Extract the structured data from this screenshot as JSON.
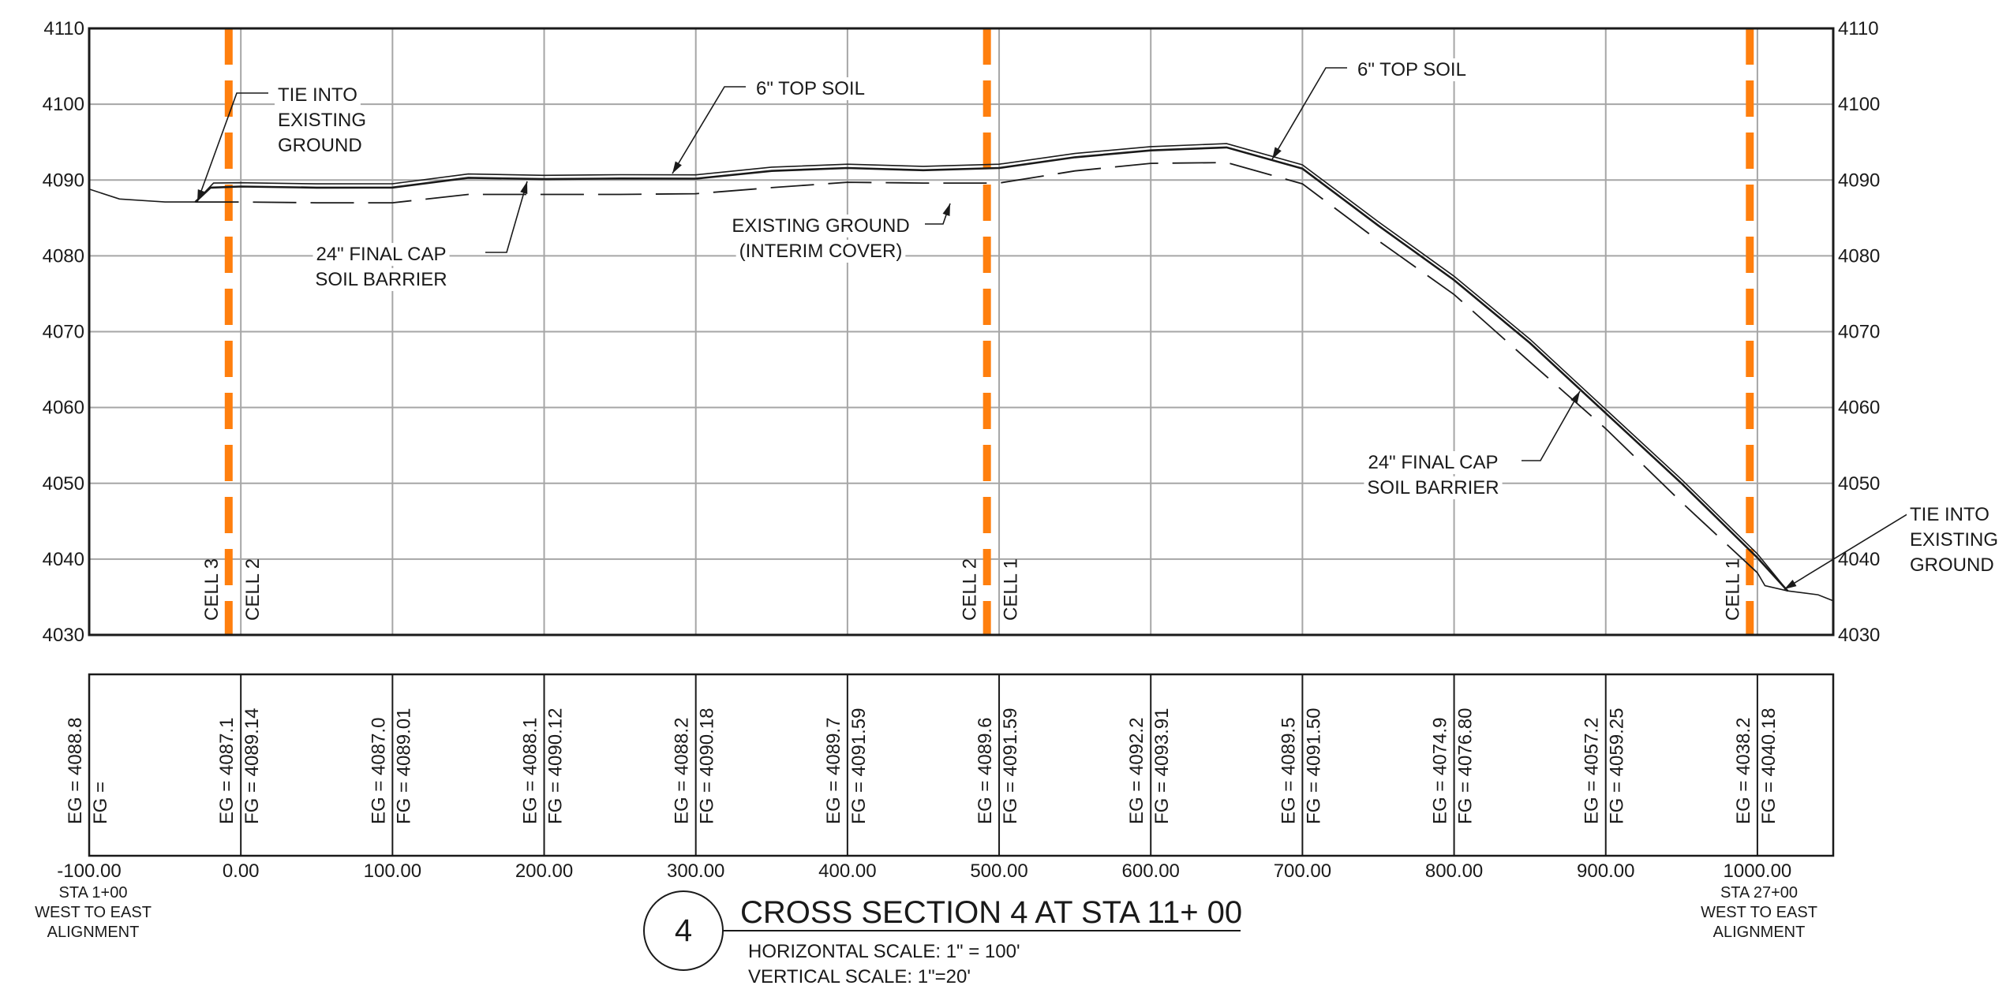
{
  "chart_data": {
    "type": "line",
    "xlim": [
      -100,
      1050
    ],
    "ylim": [
      4030,
      4110
    ],
    "y_ticks": [
      4030,
      4040,
      4050,
      4060,
      4070,
      4080,
      4090,
      4100,
      4110
    ],
    "x_ticks": [
      -100,
      0,
      100,
      200,
      300,
      400,
      500,
      600,
      700,
      800,
      900,
      1000
    ],
    "x_tick_labels": [
      "-100.00",
      "0.00",
      "100.00",
      "200.00",
      "300.00",
      "400.00",
      "500.00",
      "600.00",
      "700.00",
      "800.00",
      "900.00",
      "1000.00"
    ],
    "grid": true,
    "series": [
      {
        "key": "existing_ground_outside",
        "style": "solid-thin",
        "segments": [
          [
            [
              -100,
              4088.8
            ],
            [
              -80,
              4087.5
            ],
            [
              -50,
              4087.1
            ],
            [
              -30,
              4087.1
            ]
          ],
          [
            [
              1000,
              4038.2
            ],
            [
              1005,
              4036.5
            ],
            [
              1020,
              4035.8
            ],
            [
              1040,
              4035.3
            ],
            [
              1050,
              4034.5
            ]
          ]
        ]
      },
      {
        "key": "existing_ground_interim",
        "style": "dashed",
        "points": [
          [
            -30,
            4087.1
          ],
          [
            0,
            4087.1
          ],
          [
            50,
            4087.0
          ],
          [
            100,
            4087.0
          ],
          [
            150,
            4088.1
          ],
          [
            200,
            4088.1
          ],
          [
            250,
            4088.1
          ],
          [
            300,
            4088.2
          ],
          [
            350,
            4089.0
          ],
          [
            400,
            4089.7
          ],
          [
            450,
            4089.6
          ],
          [
            500,
            4089.6
          ],
          [
            550,
            4091.2
          ],
          [
            600,
            4092.2
          ],
          [
            650,
            4092.3
          ],
          [
            700,
            4089.5
          ],
          [
            750,
            4082.0
          ],
          [
            800,
            4074.9
          ],
          [
            850,
            4066.0
          ],
          [
            900,
            4057.2
          ],
          [
            950,
            4047.5
          ],
          [
            1000,
            4038.2
          ]
        ]
      },
      {
        "key": "final_cap",
        "style": "solid",
        "points": [
          [
            -30,
            4087.1
          ],
          [
            -20,
            4089.0
          ],
          [
            0,
            4089.14
          ],
          [
            50,
            4089.0
          ],
          [
            100,
            4089.01
          ],
          [
            150,
            4090.3
          ],
          [
            200,
            4090.12
          ],
          [
            250,
            4090.2
          ],
          [
            300,
            4090.18
          ],
          [
            350,
            4091.2
          ],
          [
            400,
            4091.59
          ],
          [
            450,
            4091.3
          ],
          [
            500,
            4091.59
          ],
          [
            550,
            4093.0
          ],
          [
            600,
            4093.91
          ],
          [
            650,
            4094.3
          ],
          [
            700,
            4091.5
          ],
          [
            750,
            4084.0
          ],
          [
            800,
            4076.8
          ],
          [
            850,
            4068.5
          ],
          [
            900,
            4059.25
          ],
          [
            950,
            4050.0
          ],
          [
            1000,
            4040.18
          ],
          [
            1020,
            4035.8
          ]
        ]
      },
      {
        "key": "top_soil",
        "style": "solid",
        "points": [
          [
            -30,
            4087.1
          ],
          [
            -18,
            4089.6
          ],
          [
            0,
            4089.64
          ],
          [
            50,
            4089.5
          ],
          [
            100,
            4089.51
          ],
          [
            150,
            4090.8
          ],
          [
            200,
            4090.62
          ],
          [
            250,
            4090.7
          ],
          [
            300,
            4090.68
          ],
          [
            350,
            4091.7
          ],
          [
            400,
            4092.09
          ],
          [
            450,
            4091.8
          ],
          [
            500,
            4092.09
          ],
          [
            550,
            4093.5
          ],
          [
            600,
            4094.41
          ],
          [
            650,
            4094.8
          ],
          [
            700,
            4092.0
          ],
          [
            750,
            4084.5
          ],
          [
            800,
            4077.3
          ],
          [
            850,
            4069.0
          ],
          [
            900,
            4059.75
          ],
          [
            950,
            4050.5
          ],
          [
            1000,
            4040.68
          ],
          [
            1020,
            4035.8
          ]
        ]
      }
    ],
    "cell_boundaries": [
      {
        "x": -8,
        "left": "CELL 3",
        "right": "CELL 2"
      },
      {
        "x": 492,
        "left": "CELL 2",
        "right": "CELL 1"
      },
      {
        "x": 995,
        "left": "CELL 1",
        "right": ""
      }
    ],
    "elevation_table": [
      {
        "x": -100,
        "eg": "EG = 4088.8",
        "fg": "FG ="
      },
      {
        "x": 0,
        "eg": "EG = 4087.1",
        "fg": "FG = 4089.14"
      },
      {
        "x": 100,
        "eg": "EG = 4087.0",
        "fg": "FG = 4089.01"
      },
      {
        "x": 200,
        "eg": "EG = 4088.1",
        "fg": "FG = 4090.12"
      },
      {
        "x": 300,
        "eg": "EG = 4088.2",
        "fg": "FG = 4090.18"
      },
      {
        "x": 400,
        "eg": "EG = 4089.7",
        "fg": "FG = 4091.59"
      },
      {
        "x": 500,
        "eg": "EG = 4089.6",
        "fg": "FG = 4091.59"
      },
      {
        "x": 600,
        "eg": "EG = 4092.2",
        "fg": "FG = 4093.91"
      },
      {
        "x": 700,
        "eg": "EG = 4089.5",
        "fg": "FG = 4091.50"
      },
      {
        "x": 800,
        "eg": "EG = 4074.9",
        "fg": "FG = 4076.80"
      },
      {
        "x": 900,
        "eg": "EG = 4057.2",
        "fg": "FG = 4059.25"
      },
      {
        "x": 1000,
        "eg": "EG = 4038.2",
        "fg": "FG = 4040.18"
      }
    ],
    "annotations": [
      {
        "lines": [
          "TIE INTO",
          "EXISTING",
          "GROUND"
        ],
        "anchor": "start"
      },
      {
        "lines": [
          "6\" TOP SOIL"
        ],
        "anchor": "start"
      },
      {
        "lines": [
          "6\" TOP SOIL"
        ],
        "anchor": "start"
      },
      {
        "lines": [
          "24\" FINAL CAP",
          "SOIL BARRIER"
        ],
        "anchor": "middle"
      },
      {
        "lines": [
          "EXISTING GROUND",
          "(INTERIM COVER)"
        ],
        "anchor": "middle"
      },
      {
        "lines": [
          "24\" FINAL CAP",
          "SOIL BARRIER"
        ],
        "anchor": "middle"
      },
      {
        "lines": [
          "TIE INTO",
          "EXISTING",
          "GROUND"
        ],
        "anchor": "start"
      }
    ]
  },
  "colors": {
    "cell_line": "#ff7f0e",
    "grid": "#a6a6a6",
    "ink": "#1a1a1a"
  },
  "station_left": [
    "STA 1+00",
    "WEST TO EAST",
    "ALIGNMENT"
  ],
  "station_right": [
    "STA 27+00",
    "WEST TO EAST",
    "ALIGNMENT"
  ],
  "title_block": {
    "number": "4",
    "title": "CROSS SECTION 4 AT STA 11+ 00",
    "horizontal_scale": "HORIZONTAL SCALE: 1\" = 100'",
    "vertical_scale": "VERTICAL SCALE: 1\"=20'"
  }
}
